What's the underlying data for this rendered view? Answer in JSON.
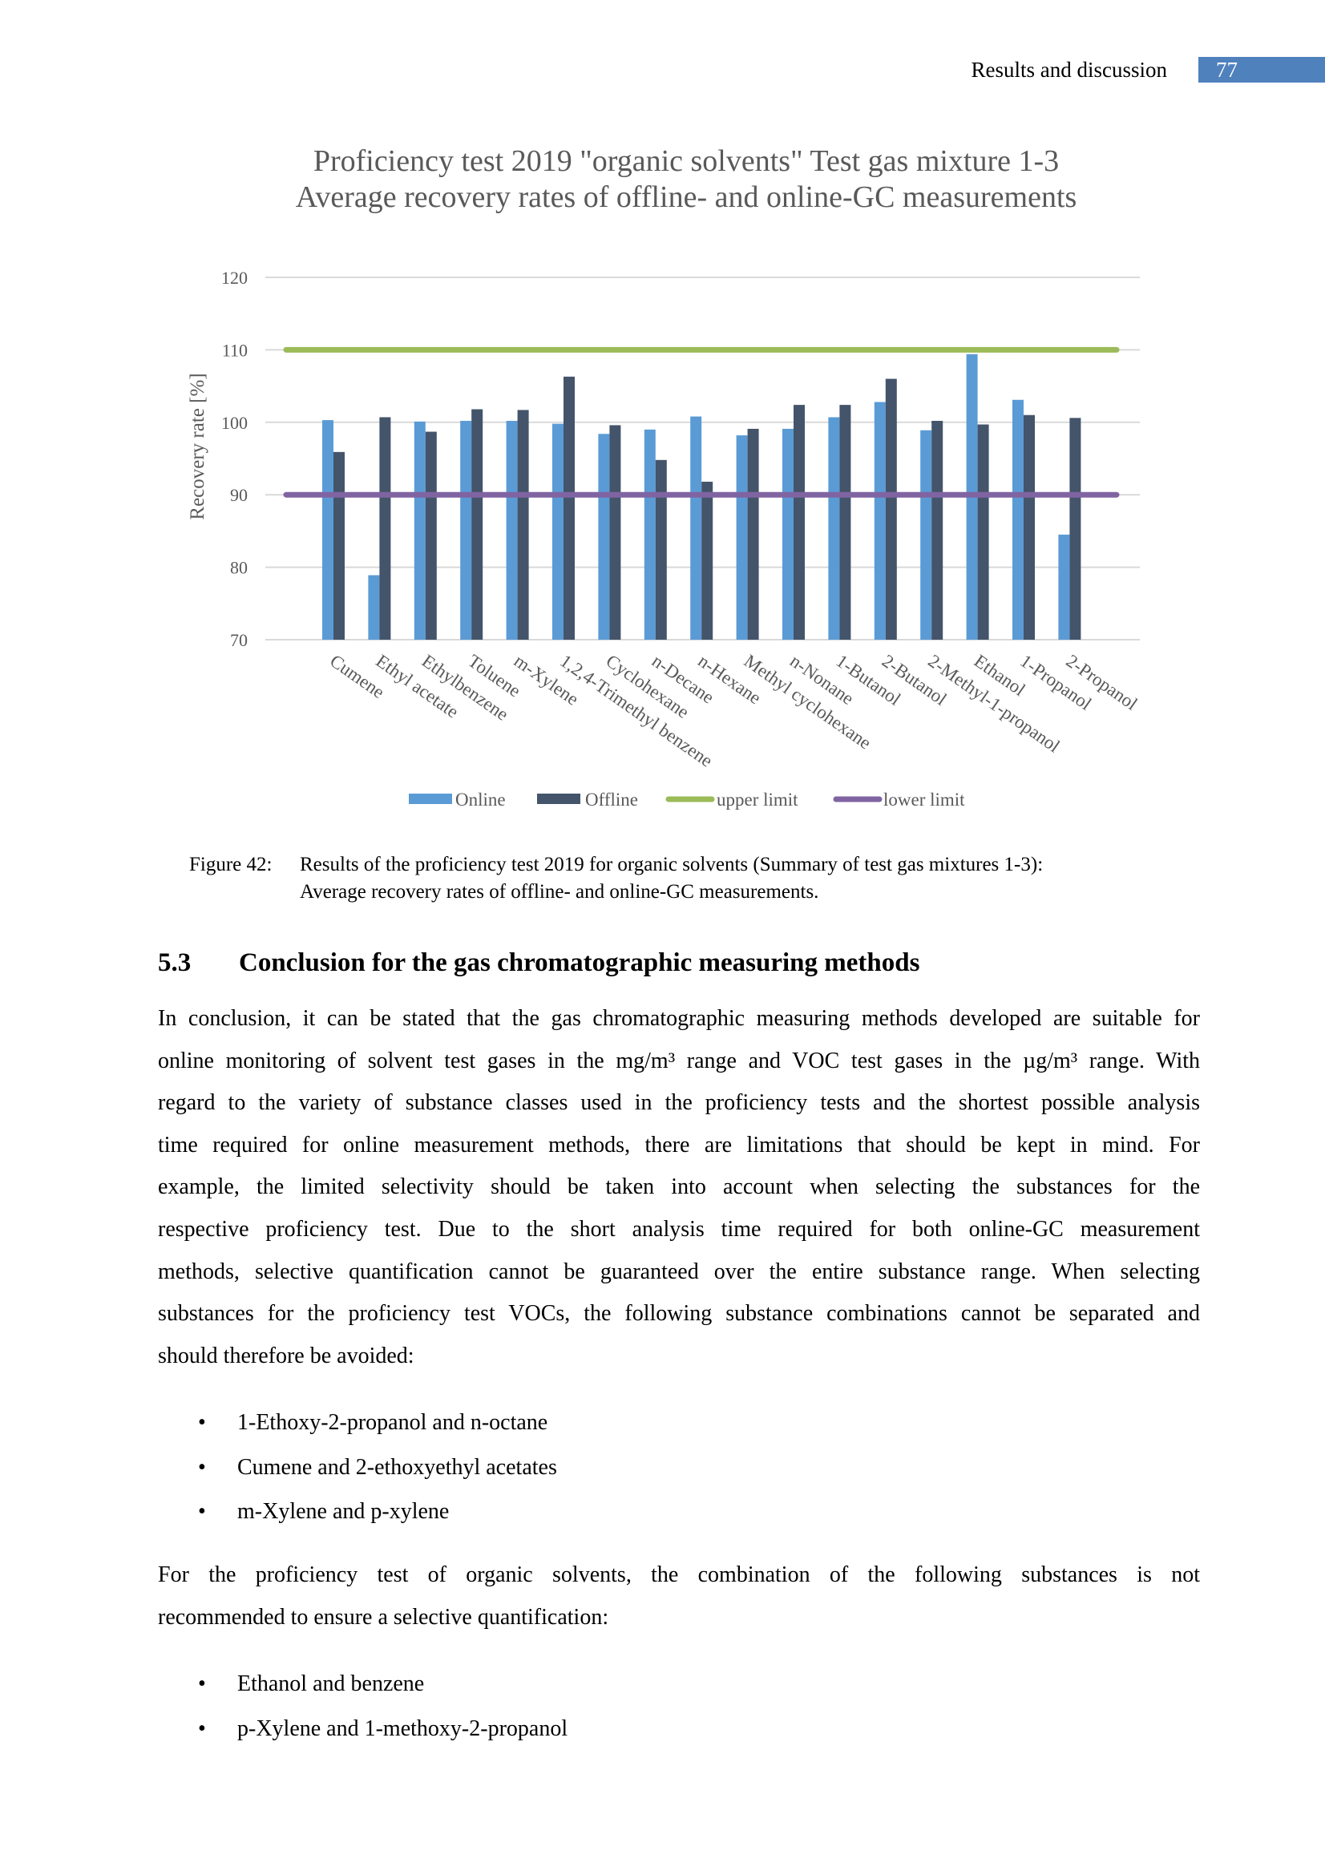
{
  "header": {
    "section": "Results and discussion",
    "page_number": "77",
    "accent": "#4f81bd"
  },
  "chart_data": {
    "type": "bar",
    "title": "Proficiency test 2019 \"organic solvents\" Test gas mixture 1-3",
    "subtitle": "Average recovery rates of offline- and online-GC measurements",
    "xlabel": "",
    "ylabel": "Recovery rate [%]",
    "ylim": [
      70,
      120
    ],
    "yticks": [
      "70",
      "80",
      "90",
      "100",
      "110",
      "120"
    ],
    "grid": true,
    "legend_placement": "bottom",
    "categories": [
      "Cumene",
      "Ethyl acetate",
      "Ethylbenzene",
      "Toluene",
      "m-Xylene",
      "1,2,4-Trimethyl benzene",
      "Cyclohexane",
      "n-Decane",
      "n-Hexane",
      "Methyl cyclohexane",
      "n-Nonane",
      "1-Butanol",
      "2-Butanol",
      "2-Methyl-1-propanol",
      "Ethanol",
      "1-Propanol",
      "2-Propanol"
    ],
    "series": [
      {
        "name": "Online",
        "type": "bar",
        "color": "#5b9bd5",
        "values": [
          100.3,
          78.9,
          100.1,
          100.2,
          100.2,
          99.8,
          98.4,
          99.0,
          100.8,
          98.2,
          99.1,
          100.7,
          102.8,
          98.9,
          109.4,
          103.1,
          84.5
        ]
      },
      {
        "name": "Offline",
        "type": "bar",
        "color": "#44546a",
        "values": [
          95.9,
          100.7,
          98.7,
          101.8,
          101.7,
          106.3,
          99.6,
          94.8,
          91.8,
          99.1,
          102.4,
          102.4,
          106.0,
          100.2,
          99.7,
          101.0,
          100.6
        ]
      },
      {
        "name": "upper limit",
        "type": "line",
        "color": "#9bbb59",
        "value": 110
      },
      {
        "name": "lower limit",
        "type": "line",
        "color": "#8064a2",
        "value": 90
      }
    ]
  },
  "caption": {
    "label": "Figure 42:",
    "line1": "Results of the proficiency test 2019 for organic solvents (Summary of test gas mixtures 1-3):",
    "line2": "Average recovery rates of offline- and online-GC measurements."
  },
  "section": {
    "number": "5.3",
    "title": "Conclusion for the gas chromatographic measuring methods"
  },
  "paragraph1": [
    "In conclusion, it can be stated that the gas chromatographic measuring methods developed are suitable for",
    "online monitoring of solvent test gases in the mg/m³ range and VOC test gases in the µg/m³ range. With",
    "regard to the variety of substance classes used in the proficiency tests and the shortest possible analysis",
    "time required for online measurement methods, there are limitations that should be kept in mind. For",
    "example, the limited selectivity should be taken into account when selecting the substances for the",
    "respective proficiency test.  Due to the short analysis time required for both online-GC measurement",
    "methods, selective quantification cannot be guaranteed over the entire substance range. When selecting",
    "substances for the proficiency test VOCs, the following substance combinations cannot be separated and",
    "should therefore be avoided:"
  ],
  "bullets1": [
    "1-Ethoxy-2-propanol and n-octane",
    "Cumene and 2-ethoxyethyl acetates",
    "m-Xylene and p-xylene"
  ],
  "paragraph2": [
    "For the proficiency test of organic solvents, the combination of the following substances is not",
    "recommended to ensure a selective quantification:"
  ],
  "bullets2": [
    "Ethanol and benzene",
    "p-Xylene and 1-methoxy-2-propanol"
  ],
  "bullet_glyph": "•"
}
